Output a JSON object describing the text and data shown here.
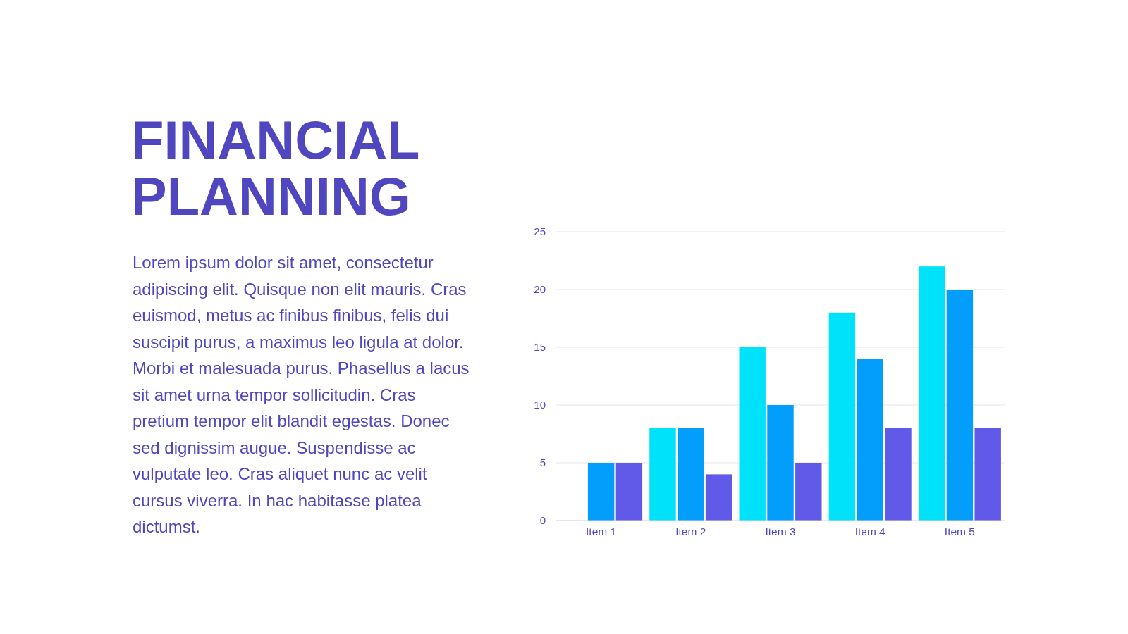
{
  "chart_data": {
    "type": "bar",
    "title": "FINANCIAL PLANNING",
    "subtitle": "Lorem ipsum dolor sit amet, consectetur adipiscing elit. Quisque non elit mauris. Cras euismod, metus ac finibus finibus, felis dui suscipit purus, a maximus leo ligula at dolor. Morbi et malesuada purus. Phasellus a lacus sit amet urna tempor sollicitudin. Cras pretium tempor elit blandit egestas. Donec sed dignissim augue. Suspendisse ac vulputate leo. Cras aliquet nunc ac velit cursus viverra. In hac habitasse platea dictumst.",
    "categories": [
      "Item 1",
      "Item 2",
      "Item 3",
      "Item 4",
      "Item 5"
    ],
    "series": [
      {
        "color": "#00e1fa",
        "values": [
          0,
          8,
          15,
          18,
          22
        ]
      },
      {
        "color": "#039dfb",
        "values": [
          5,
          8,
          10,
          14,
          20
        ]
      },
      {
        "color": "#6159e8",
        "values": [
          5,
          4,
          5,
          8,
          8
        ]
      }
    ],
    "ylim": [
      0,
      25
    ],
    "yticks": [
      0,
      5,
      10,
      15,
      20,
      25
    ],
    "grid": "y"
  }
}
